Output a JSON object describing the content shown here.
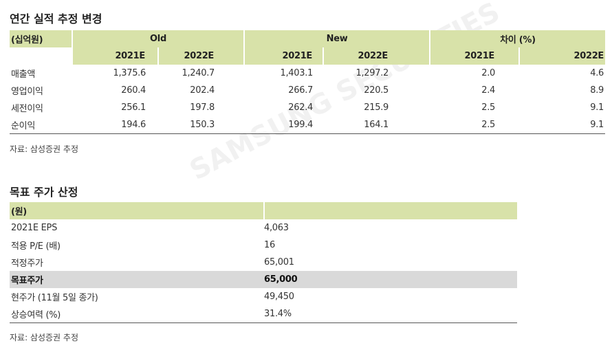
{
  "section1": {
    "title": "연간 실적 추정 변경",
    "unit": "(십억원)",
    "groups": [
      "Old",
      "New",
      "차이 (%)"
    ],
    "years": [
      "2021E",
      "2022E",
      "2021E",
      "2022E",
      "2021E",
      "2022E"
    ],
    "rows": [
      [
        "매출액",
        "1,375.6",
        "1,240.7",
        "1,403.1",
        "1,297.2",
        "2.0",
        "4.6"
      ],
      [
        "영업이익",
        "260.4",
        "202.4",
        "266.7",
        "220.5",
        "2.4",
        "8.9"
      ],
      [
        "세전이익",
        "256.1",
        "197.8",
        "262.4",
        "215.9",
        "2.5",
        "9.1"
      ],
      [
        "순이익",
        "194.6",
        "150.3",
        "199.4",
        "164.1",
        "2.5",
        "9.1"
      ]
    ],
    "source": "자료: 삼성증권 추정"
  },
  "section2": {
    "title": "목표 주가 산정",
    "unit": "(원)",
    "rows": [
      [
        "2021E EPS",
        "4,063"
      ],
      [
        "적용 P/E (배)",
        "16"
      ],
      [
        "적정주가",
        "65,001"
      ],
      [
        "목표주가",
        "65,000"
      ],
      [
        "현주가 (11월 5일 종가)",
        "49,450"
      ],
      [
        "상승여력 (%)",
        "31.4%"
      ]
    ],
    "source": "자료: 삼성증권 추정"
  },
  "watermark": "SAMSUNG SECURITIES"
}
